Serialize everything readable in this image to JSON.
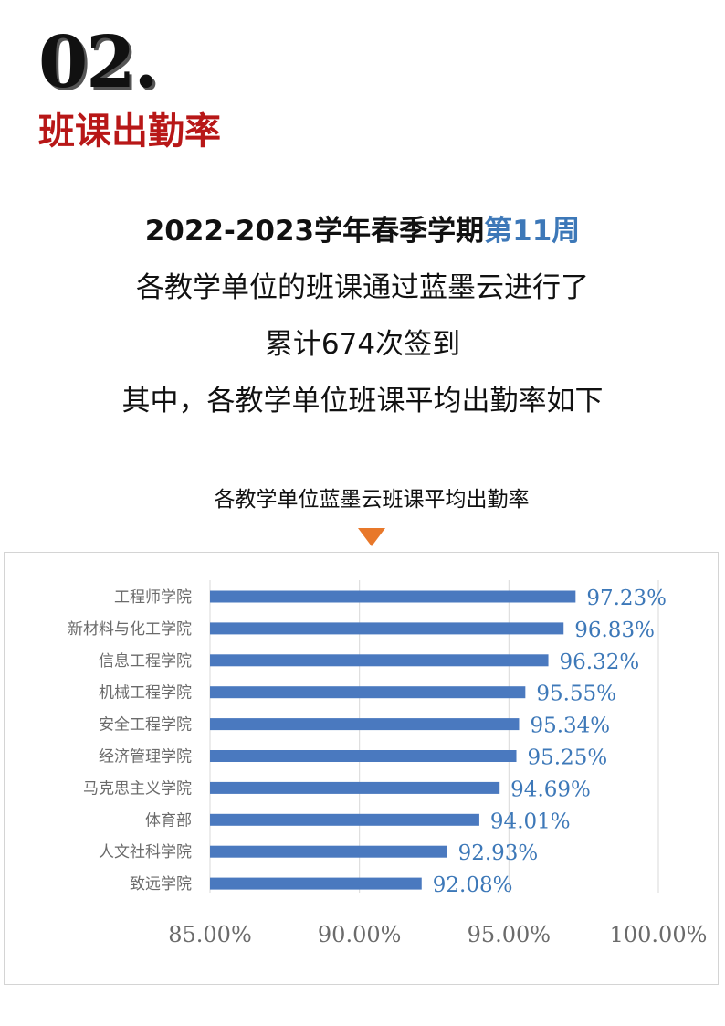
{
  "header": {
    "number": "02.",
    "title": "班课出勤率"
  },
  "summary": {
    "line1_prefix": "2022-2023学年春季学期",
    "line1_week": "第11周",
    "line2": "各教学单位的班课通过蓝墨云进行了",
    "line3": "累计674次签到",
    "line4": "其中，各教学单位班课平均出勤率如下"
  },
  "colors": {
    "title_red": "#b81717",
    "week_blue": "#3d78b8",
    "bar_blue": "#4a79bf",
    "arrow_orange": "#e8782a"
  },
  "chart_data": {
    "type": "bar",
    "orientation": "horizontal",
    "title": "各教学单位蓝墨云班课平均出勤率",
    "categories": [
      "工程师学院",
      "新材料与化工学院",
      "信息工程学院",
      "机械工程学院",
      "安全工程学院",
      "经济管理学院",
      "马克思主义学院",
      "体育部",
      "人文社科学院",
      "致远学院"
    ],
    "values": [
      97.23,
      96.83,
      96.32,
      95.55,
      95.34,
      95.25,
      94.69,
      94.01,
      92.93,
      92.08
    ],
    "value_labels": [
      "97.23%",
      "96.83%",
      "96.32%",
      "95.55%",
      "95.34%",
      "95.25%",
      "94.69%",
      "94.01%",
      "92.93%",
      "92.08%"
    ],
    "xlim": [
      85,
      100
    ],
    "xticks": [
      85,
      90,
      95,
      100
    ],
    "xtick_labels": [
      "85.00%",
      "90.00%",
      "95.00%",
      "100.00%"
    ],
    "grid": "vertical",
    "legend": "none"
  }
}
